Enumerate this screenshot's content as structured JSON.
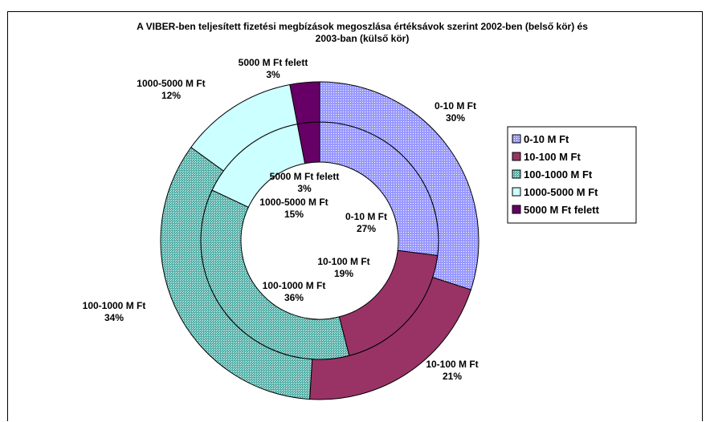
{
  "chart_data": {
    "type": "pie",
    "subtype": "doughnut",
    "title_lines": [
      "A VIBER-ben teljesített fizetési megbízások megoszlása értéksávok szerint 2002-ben (belső kör) és",
      "2003-ban (külső kör)"
    ],
    "categories": [
      "0-10 M Ft",
      "10-100 M Ft",
      "100-1000 M Ft",
      "1000-5000 M Ft",
      "5000 M Ft felett"
    ],
    "colors": [
      "#9999ff",
      "#993366",
      "#56b0a8",
      "#ccffff",
      "#660066"
    ],
    "pattern_colors": [
      "#ffffff",
      "#993366",
      "#d8f0ee",
      "#ffffff",
      "#660066"
    ],
    "series": [
      {
        "ring": "inner",
        "values": [
          27,
          19,
          36,
          15,
          3
        ],
        "labels": [
          [
            "0-10 M Ft",
            "27%"
          ],
          [
            "10-100 M Ft",
            "19%"
          ],
          [
            "100-1000 M Ft",
            "36%"
          ],
          [
            "1000-5000 M Ft",
            "15%"
          ],
          [
            "5000 M Ft felett",
            "3%"
          ]
        ]
      },
      {
        "ring": "outer",
        "values": [
          30,
          21,
          34,
          12,
          3
        ],
        "labels": [
          [
            "0-10 M Ft",
            "30%"
          ],
          [
            "10-100 M Ft",
            "21%"
          ],
          [
            "100-1000 M Ft",
            "34%"
          ],
          [
            "1000-5000 M Ft",
            "12%"
          ],
          [
            "5000 M Ft felett",
            "3%"
          ]
        ]
      }
    ],
    "legend": {
      "position": "right",
      "entries": [
        "0-10 M Ft",
        "10-100 M Ft",
        "100-1000 M Ft",
        "1000-5000 M Ft",
        "5000 M Ft felett"
      ]
    }
  }
}
